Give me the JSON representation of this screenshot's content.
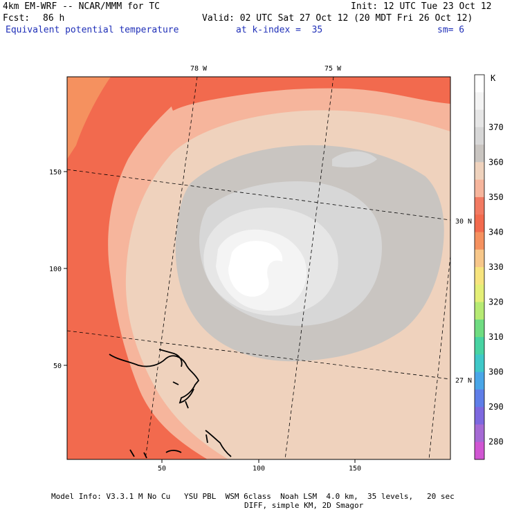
{
  "header": {
    "model_title": "4km EM-WRF -- NCAR/MMM for TC",
    "init": "Init: 12 UTC Tue 23 Oct 12",
    "forecast_label": "Fcst:",
    "forecast_hours": "86 h",
    "valid": "Valid: 02 UTC Sat 27 Oct 12 (20 MDT Fri 26 Oct 12)",
    "field_name": "Equivalent potential temperature",
    "level": "at k-index =  35",
    "smoothing": "sm= 6"
  },
  "map": {
    "x_ticks": [
      "50",
      "100",
      "150"
    ],
    "y_ticks": [
      "150",
      "100",
      "50"
    ],
    "longitude_labels": [
      "78 W",
      "75 W"
    ],
    "latitude_labels": [
      "30 N",
      "27 N"
    ]
  },
  "colorbar": {
    "unit": "K",
    "levels": [
      "370",
      "360",
      "350",
      "340",
      "330",
      "320",
      "310",
      "300",
      "290",
      "280"
    ],
    "colors": [
      "#ffffff",
      "#f4f4f4",
      "#e6e6e6",
      "#d7d7d7",
      "#c9c5c1",
      "#efd2bd",
      "#f6b59c",
      "#f27a62",
      "#f26a4e",
      "#f5915f",
      "#f7c78a",
      "#f7e47e",
      "#e4ef77",
      "#b6ea73",
      "#6fdc81",
      "#48d3a2",
      "#3fc8c8",
      "#4aa6e8",
      "#5f7ee8",
      "#7d68df",
      "#a56ad4",
      "#d056d2"
    ]
  },
  "footer": {
    "line1": "Model Info: V3.3.1 M No Cu   YSU PBL  WSM 6class  Noah LSM  4.0 km,  35 levels,   20 sec",
    "line2": "DIFF, simple KM, 2D Smagor"
  }
}
